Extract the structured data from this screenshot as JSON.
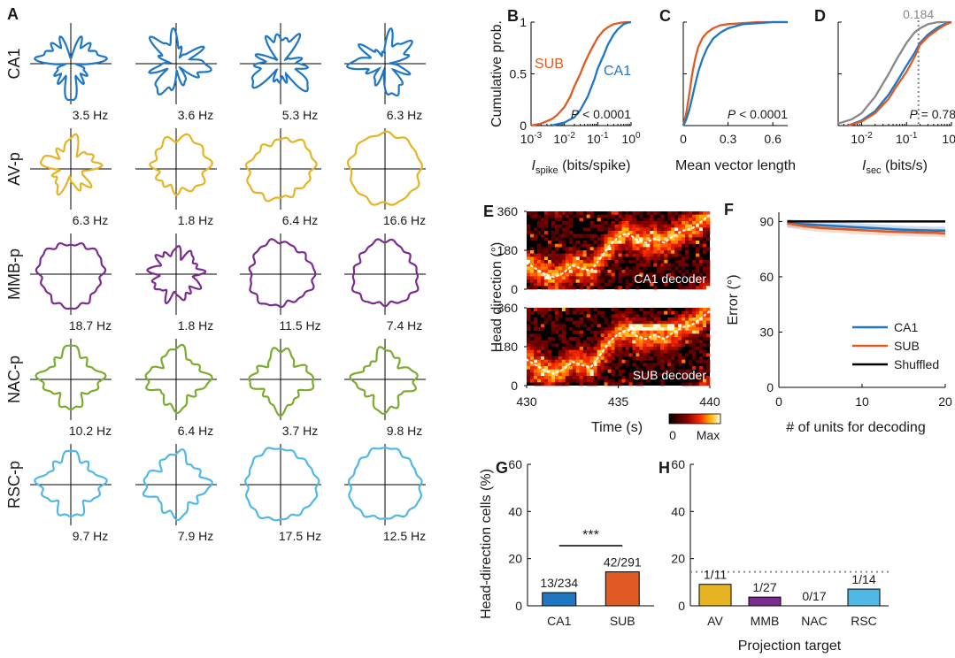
{
  "colors": {
    "CA1": "#1f77c4",
    "SUB": "#e05a24",
    "AV": "#e6b422",
    "MMB": "#7b2c8f",
    "NAC": "#7aac2e",
    "RSC": "#4fb8e6",
    "shuffled": "#000000",
    "grey": "#888888"
  },
  "panelA": {
    "letter": "A",
    "rows": [
      {
        "label": "CA1",
        "color_key": "CA1",
        "rates": [
          "3.5 Hz",
          "3.6 Hz",
          "5.3 Hz",
          "6.3 Hz"
        ],
        "shape": "spiky-small"
      },
      {
        "label": "AV-p",
        "color_key": "AV",
        "rates": [
          "6.3 Hz",
          "1.8 Hz",
          "6.4 Hz",
          "16.6 Hz"
        ],
        "shape": "mixed"
      },
      {
        "label": "MMB-p",
        "color_key": "MMB",
        "rates": [
          "18.7 Hz",
          "1.8 Hz",
          "11.5 Hz",
          "7.4 Hz"
        ],
        "shape": "round"
      },
      {
        "label": "NAC-p",
        "color_key": "NAC",
        "rates": [
          "10.2 Hz",
          "6.4 Hz",
          "3.7 Hz",
          "9.8 Hz"
        ],
        "shape": "diamond"
      },
      {
        "label": "RSC-p",
        "color_key": "RSC",
        "rates": [
          "9.7 Hz",
          "7.9 Hz",
          "17.5 Hz",
          "12.5 Hz"
        ],
        "shape": "cross"
      }
    ]
  },
  "chart_data": [
    {
      "panel": "B",
      "type": "line",
      "ylabel": "Cumulative prob.",
      "xlabel_main": "I",
      "xlabel_sub": "spike",
      "xlabel_rest": " (bits/spike)",
      "xscale": "log",
      "xlim": [
        0.001,
        1
      ],
      "ylim": [
        0,
        1
      ],
      "xticks": [
        {
          "v": 0.001,
          "base": "10",
          "exp": "-3"
        },
        {
          "v": 0.01,
          "base": "10",
          "exp": "-2"
        },
        {
          "v": 0.1,
          "base": "10",
          "exp": "-1"
        },
        {
          "v": 1,
          "base": "10",
          "exp": "0"
        }
      ],
      "yticks": [
        {
          "v": 0,
          "t": "0"
        },
        {
          "v": 0.5,
          "t": "0.5"
        },
        {
          "v": 1,
          "t": "1"
        }
      ],
      "annotation": {
        "p": "P",
        "rest": " < 0.0001"
      },
      "series": [
        {
          "name": "SUB",
          "color_key": "SUB",
          "x": [
            0.001,
            0.002,
            0.004,
            0.006,
            0.01,
            0.015,
            0.02,
            0.03,
            0.04,
            0.06,
            0.1,
            0.15,
            0.2,
            0.3,
            0.5,
            0.7,
            1
          ],
          "y": [
            0,
            0.02,
            0.06,
            0.1,
            0.18,
            0.28,
            0.38,
            0.5,
            0.6,
            0.72,
            0.85,
            0.92,
            0.95,
            0.98,
            0.995,
            1,
            1
          ]
        },
        {
          "name": "CA1",
          "color_key": "CA1",
          "x": [
            0.004,
            0.01,
            0.02,
            0.03,
            0.05,
            0.08,
            0.1,
            0.15,
            0.2,
            0.3,
            0.4,
            0.6,
            0.8,
            1
          ],
          "y": [
            0,
            0.03,
            0.08,
            0.15,
            0.28,
            0.45,
            0.55,
            0.68,
            0.78,
            0.88,
            0.93,
            0.98,
            0.995,
            1
          ]
        }
      ],
      "legend": [
        {
          "text": "SUB",
          "color_key": "SUB"
        },
        {
          "text": "CA1",
          "color_key": "CA1"
        }
      ]
    },
    {
      "panel": "C",
      "type": "line",
      "xlabel": "Mean vector length",
      "xlim": [
        0,
        0.7
      ],
      "ylim": [
        0,
        1
      ],
      "xticks": [
        {
          "v": 0,
          "t": "0"
        },
        {
          "v": 0.3,
          "t": "0.3"
        },
        {
          "v": 0.6,
          "t": "0.6"
        }
      ],
      "annotation": {
        "p": "P",
        "rest": " < 0.0001"
      },
      "series": [
        {
          "name": "SUB",
          "color_key": "SUB",
          "x": [
            0,
            0.02,
            0.04,
            0.06,
            0.08,
            0.1,
            0.13,
            0.16,
            0.2,
            0.25,
            0.3,
            0.4,
            0.5,
            0.6,
            0.7
          ],
          "y": [
            0,
            0.12,
            0.3,
            0.5,
            0.65,
            0.76,
            0.85,
            0.9,
            0.94,
            0.97,
            0.98,
            0.99,
            1,
            1,
            1
          ]
        },
        {
          "name": "CA1",
          "color_key": "CA1",
          "x": [
            0,
            0.02,
            0.04,
            0.06,
            0.08,
            0.1,
            0.13,
            0.16,
            0.2,
            0.25,
            0.3,
            0.4,
            0.5,
            0.6,
            0.7
          ],
          "y": [
            0,
            0.06,
            0.15,
            0.27,
            0.4,
            0.52,
            0.65,
            0.75,
            0.84,
            0.9,
            0.94,
            0.98,
            0.99,
            1,
            1
          ]
        }
      ]
    },
    {
      "panel": "D",
      "type": "line",
      "xlabel_main": "I",
      "xlabel_sub": "sec",
      "xlabel_rest": " (bits/s)",
      "xscale": "log",
      "xlim": [
        0.003,
        1
      ],
      "ylim": [
        0,
        1
      ],
      "xticks": [
        {
          "v": 0.01,
          "base": "10",
          "exp": "-2"
        },
        {
          "v": 0.1,
          "base": "10",
          "exp": "-1"
        },
        {
          "v": 1,
          "base": "10",
          "exp": "0"
        }
      ],
      "annotation": {
        "p": "P",
        "rest": " = 0.78"
      },
      "threshold": {
        "value": 0.184,
        "label": "0.184"
      },
      "series": [
        {
          "name": "Shuffled",
          "color_key": "grey",
          "x": [
            0.003,
            0.006,
            0.01,
            0.02,
            0.04,
            0.06,
            0.1,
            0.15,
            0.2,
            0.3,
            0.5,
            0.8,
            1
          ],
          "y": [
            0.02,
            0.06,
            0.12,
            0.28,
            0.5,
            0.64,
            0.8,
            0.9,
            0.94,
            0.98,
            1,
            1,
            1
          ]
        },
        {
          "name": "CA1",
          "color_key": "CA1",
          "x": [
            0.005,
            0.01,
            0.02,
            0.04,
            0.06,
            0.1,
            0.15,
            0.2,
            0.3,
            0.5,
            0.7,
            1
          ],
          "y": [
            0,
            0.05,
            0.14,
            0.3,
            0.42,
            0.58,
            0.7,
            0.8,
            0.88,
            0.95,
            0.98,
            1
          ]
        },
        {
          "name": "SUB",
          "color_key": "SUB",
          "x": [
            0.005,
            0.01,
            0.02,
            0.04,
            0.06,
            0.1,
            0.15,
            0.2,
            0.3,
            0.5,
            0.7,
            1
          ],
          "y": [
            0,
            0.04,
            0.12,
            0.26,
            0.38,
            0.52,
            0.66,
            0.78,
            0.86,
            0.93,
            0.97,
            1
          ]
        }
      ]
    },
    {
      "panel": "E",
      "type": "heatmap",
      "ylabel": "Head direction (°)",
      "xlabel": "Time (s)",
      "xlim": [
        430,
        440
      ],
      "ylim": [
        0,
        360
      ],
      "xticks": [
        {
          "v": 430,
          "t": "430"
        },
        {
          "v": 435,
          "t": "435"
        },
        {
          "v": 440,
          "t": "440"
        }
      ],
      "yticks": [
        {
          "v": 0,
          "t": "0"
        },
        {
          "v": 180,
          "t": "180"
        },
        {
          "v": 360,
          "t": "360"
        }
      ],
      "colorbar": {
        "min_label": "0",
        "max_label": "Max"
      },
      "subpanels": [
        {
          "label": "CA1 decoder"
        },
        {
          "label": "SUB decoder"
        }
      ],
      "true_hd": {
        "t": [
          430,
          430.5,
          431,
          431.5,
          432,
          432.5,
          433,
          433.5,
          434,
          434.5,
          435,
          435.5,
          436,
          436.5,
          437,
          437.5,
          438,
          438.5,
          439,
          439.5,
          440
        ],
        "deg": [
          120,
          95,
          70,
          55,
          75,
          110,
          95,
          85,
          140,
          200,
          240,
          260,
          230,
          215,
          235,
          215,
          245,
          270,
          280,
          310,
          345
        ]
      }
    },
    {
      "panel": "F",
      "type": "line",
      "ylabel": "Error (°)",
      "xlabel": "# of units for decoding",
      "xlim": [
        0,
        20
      ],
      "ylim": [
        0,
        95
      ],
      "xticks": [
        {
          "v": 0,
          "t": "0"
        },
        {
          "v": 10,
          "t": "10"
        },
        {
          "v": 20,
          "t": "20"
        }
      ],
      "yticks": [
        {
          "v": 0,
          "t": "0"
        },
        {
          "v": 30,
          "t": "30"
        },
        {
          "v": 60,
          "t": "60"
        },
        {
          "v": 90,
          "t": "90"
        }
      ],
      "series": [
        {
          "name": "CA1",
          "color_key": "CA1",
          "x": [
            1,
            3,
            5,
            7,
            9,
            11,
            13,
            15,
            17,
            19,
            20
          ],
          "y": [
            89,
            88.5,
            88,
            87.5,
            87,
            86.5,
            86,
            85.5,
            85.2,
            85,
            85
          ]
        },
        {
          "name": "SUB",
          "color_key": "SUB",
          "x": [
            1,
            3,
            5,
            7,
            9,
            11,
            13,
            15,
            17,
            19,
            20
          ],
          "y": [
            89,
            87.5,
            86.5,
            86,
            85.5,
            85,
            84.5,
            84.3,
            84,
            83.8,
            83.5
          ]
        },
        {
          "name": "Shuffled",
          "color_key": "shuffled",
          "x": [
            1,
            20
          ],
          "y": [
            90,
            90
          ]
        }
      ],
      "legend": [
        {
          "text": "CA1",
          "color_key": "CA1"
        },
        {
          "text": "SUB",
          "color_key": "SUB"
        },
        {
          "text": "Shuffled",
          "color_key": "shuffled"
        }
      ]
    },
    {
      "panel": "G",
      "type": "bar",
      "ylabel": "Head-direction cells (%)",
      "ylim": [
        0,
        60
      ],
      "yticks": [
        {
          "v": 0,
          "t": "0"
        },
        {
          "v": 20,
          "t": "20"
        },
        {
          "v": 40,
          "t": "40"
        },
        {
          "v": 60,
          "t": "60"
        }
      ],
      "categories": [
        "CA1",
        "SUB"
      ],
      "values": [
        5.6,
        14.4
      ],
      "labels": [
        "13/234",
        "42/291"
      ],
      "color_keys": [
        "CA1",
        "SUB"
      ],
      "significance": "***"
    },
    {
      "panel": "H",
      "type": "bar",
      "xlabel": "Projection target",
      "ylim": [
        0,
        60
      ],
      "yticks": [
        {
          "v": 0,
          "t": "0"
        },
        {
          "v": 20,
          "t": "20"
        },
        {
          "v": 40,
          "t": "40"
        },
        {
          "v": 60,
          "t": "60"
        }
      ],
      "categories": [
        "AV",
        "MMB",
        "NAC",
        "RSC"
      ],
      "values": [
        9.1,
        3.7,
        0,
        7.1
      ],
      "labels": [
        "1/11",
        "1/27",
        "0/17",
        "1/14"
      ],
      "color_keys": [
        "AV",
        "MMB",
        "NAC",
        "RSC"
      ],
      "reference": 14.4
    }
  ]
}
